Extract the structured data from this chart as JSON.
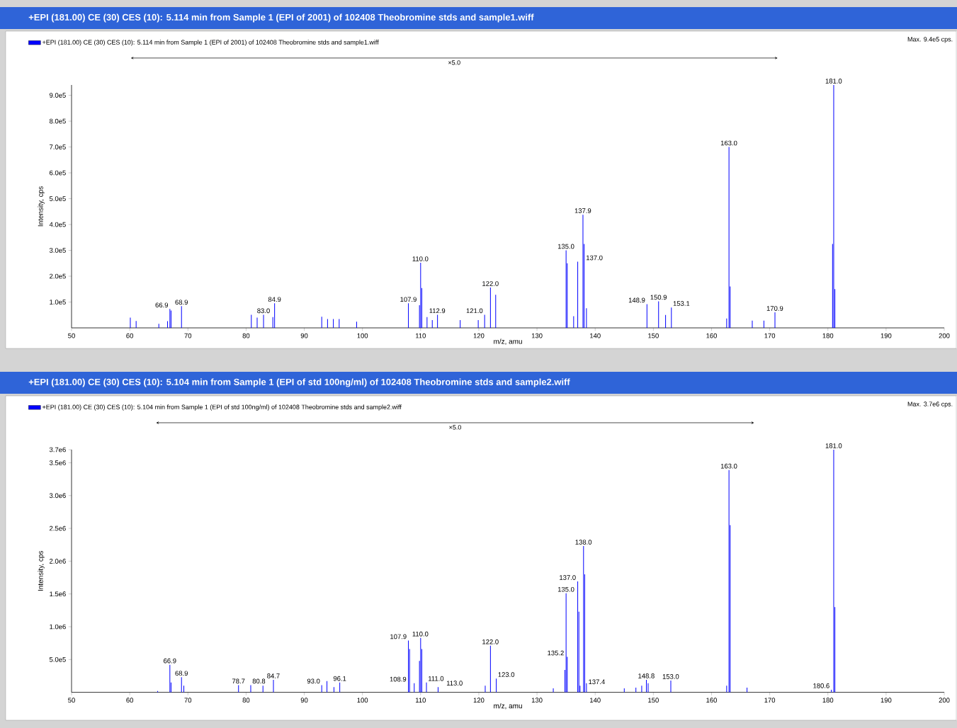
{
  "chart_data": [
    {
      "type": "bar",
      "title": "+EPI (181.00) CE (30) CES (10): 5.114 min from Sample 1 (EPI of 2001) of 102408 Theobromine stds and sample1.wiff",
      "xlabel": "m/z, amu",
      "ylabel": "Intensity, cps",
      "legend": "top left",
      "xlim": [
        50,
        200
      ],
      "xticks": [
        50,
        60,
        70,
        80,
        90,
        100,
        110,
        120,
        130,
        140,
        150,
        160,
        170,
        180,
        190,
        200
      ],
      "ylim": [
        0,
        940000
      ],
      "yticks": [
        {
          "value": 100000,
          "label": "1.0e5"
        },
        {
          "value": 200000,
          "label": "2.0e5"
        },
        {
          "value": 300000,
          "label": "3.0e5"
        },
        {
          "value": 400000,
          "label": "4.0e5"
        },
        {
          "value": 500000,
          "label": "5.0e5"
        },
        {
          "value": 600000,
          "label": "6.0e5"
        },
        {
          "value": 700000,
          "label": "7.0e5"
        },
        {
          "value": 800000,
          "label": "8.0e5"
        },
        {
          "value": 900000,
          "label": "9.0e5"
        }
      ],
      "x": [
        60.1,
        61.1,
        65.0,
        66.5,
        66.9,
        67.1,
        68.9,
        80.9,
        81.9,
        83.0,
        84.6,
        84.9,
        93.0,
        94.0,
        95.0,
        96.0,
        99.0,
        107.9,
        109.8,
        110.0,
        110.2,
        111.1,
        112.0,
        112.9,
        116.8,
        119.9,
        121.0,
        122.0,
        122.9,
        135.0,
        135.2,
        136.3,
        137.0,
        137.9,
        138.1,
        138.5,
        148.9,
        150.9,
        152.1,
        153.1,
        162.6,
        163.0,
        163.2,
        167.0,
        169.0,
        170.9,
        180.8,
        181.0,
        181.2
      ],
      "series": [
        {
          "name": "+EPI (181.00) CE (30) CES (10): 5.114 min from Sample 1 (EPI of 2001) of 102408 Theobromine stds and sample1.wiff",
          "color": "#0000ff",
          "values": [
            40000,
            27000,
            16000,
            26000,
            73000,
            67000,
            84000,
            51000,
            40000,
            51000,
            42000,
            95000,
            43000,
            34000,
            34000,
            34000,
            24000,
            95000,
            88000,
            252000,
            154000,
            42000,
            30000,
            51000,
            30000,
            30000,
            51000,
            156000,
            128000,
            300000,
            250000,
            45000,
            256000,
            438000,
            325000,
            76000,
            92000,
            103000,
            50000,
            79000,
            36000,
            700000,
            160000,
            28000,
            28000,
            60000,
            325000,
            940000,
            150000
          ]
        }
      ],
      "annotations": [
        "Max. 9.4e5 cps.",
        "×5.0",
        {
          "text": "66.9",
          "x": 66.9,
          "y": 73000
        },
        {
          "text": "68.9",
          "x": 68.9,
          "y": 84000
        },
        {
          "text": "83.0",
          "x": 83.0,
          "y": 51000
        },
        {
          "text": "84.9",
          "x": 84.9,
          "y": 95000
        },
        {
          "text": "107.9",
          "x": 107.9,
          "y": 95000
        },
        {
          "text": "110.0",
          "x": 110.0,
          "y": 252000
        },
        {
          "text": "112.9",
          "x": 112.9,
          "y": 51000
        },
        {
          "text": "121.0",
          "x": 121.0,
          "y": 51000
        },
        {
          "text": "122.0",
          "x": 122.0,
          "y": 156000
        },
        {
          "text": "135.0",
          "x": 135.0,
          "y": 300000
        },
        {
          "text": "137.0",
          "x": 137.0,
          "y": 256000
        },
        {
          "text": "137.9",
          "x": 137.9,
          "y": 438000
        },
        {
          "text": "148.9",
          "x": 148.9,
          "y": 92000
        },
        {
          "text": "150.9",
          "x": 150.9,
          "y": 103000
        },
        {
          "text": "153.1",
          "x": 153.1,
          "y": 79000
        },
        {
          "text": "163.0",
          "x": 163.0,
          "y": 700000
        },
        {
          "text": "170.9",
          "x": 170.9,
          "y": 60000
        },
        {
          "text": "181.0",
          "x": 181.0,
          "y": 940000
        }
      ]
    },
    {
      "type": "bar",
      "title": "+EPI (181.00) CE (30) CES (10): 5.104 min from Sample 1 (EPI of std 100ng/ml) of 102408 Theobromine stds and sample2.wiff",
      "xlabel": "m/z, amu",
      "ylabel": "Intensity, cps",
      "legend": "top left",
      "xlim": [
        50,
        200
      ],
      "xticks": [
        50,
        60,
        70,
        80,
        90,
        100,
        110,
        120,
        130,
        140,
        150,
        160,
        170,
        180,
        190,
        200
      ],
      "ylim": [
        0,
        3700000
      ],
      "yticks": [
        {
          "value": 500000,
          "label": "5.0e5"
        },
        {
          "value": 1000000,
          "label": "1.0e6"
        },
        {
          "value": 1500000,
          "label": "1.5e6"
        },
        {
          "value": 2000000,
          "label": "2.0e6"
        },
        {
          "value": 2500000,
          "label": "2.5e6"
        },
        {
          "value": 3000000,
          "label": "3.0e6"
        },
        {
          "value": 3500000,
          "label": "3.5e6"
        },
        {
          "value": 3700000,
          "label": "3.7e6"
        }
      ],
      "x": [
        64.8,
        66.9,
        67.1,
        68.9,
        69.3,
        78.7,
        80.8,
        82.9,
        84.7,
        93.0,
        93.9,
        95.1,
        96.1,
        107.9,
        108.1,
        108.9,
        109.8,
        110.0,
        110.2,
        111.0,
        113.0,
        121.1,
        122.0,
        123.0,
        132.8,
        134.8,
        135.0,
        135.2,
        137.0,
        137.2,
        137.4,
        138.0,
        138.2,
        138.5,
        145.0,
        147.0,
        148.0,
        148.8,
        149.1,
        153.0,
        162.6,
        163.0,
        163.2,
        166.1,
        180.6,
        181.0,
        181.2
      ],
      "series": [
        {
          "name": "+EPI (181.00) CE (30) CES (10): 5.104 min from Sample 1 (EPI of std 100ng/ml) of 102408 Theobromine stds and sample2.wiff",
          "color": "#0000ff",
          "values": [
            20000,
            420000,
            150000,
            230000,
            100000,
            110000,
            110000,
            100000,
            190000,
            110000,
            170000,
            80000,
            150000,
            790000,
            660000,
            140000,
            480000,
            830000,
            660000,
            150000,
            80000,
            100000,
            710000,
            210000,
            60000,
            340000,
            1510000,
            540000,
            1690000,
            1230000,
            100000,
            2230000,
            1800000,
            140000,
            60000,
            70000,
            100000,
            190000,
            140000,
            180000,
            100000,
            3390000,
            2550000,
            70000,
            40000,
            3700000,
            1300000
          ]
        }
      ],
      "annotations": [
        "Max. 3.7e6 cps.",
        "×5.0",
        {
          "text": "66.9",
          "x": 66.9,
          "y": 420000
        },
        {
          "text": "68.9",
          "x": 68.9,
          "y": 230000
        },
        {
          "text": "78.7",
          "x": 78.7,
          "y": 110000
        },
        {
          "text": "80.8",
          "x": 80.8,
          "y": 110000
        },
        {
          "text": "84.7",
          "x": 84.7,
          "y": 190000
        },
        {
          "text": "93.0",
          "x": 93.0,
          "y": 110000
        },
        {
          "text": "96.1",
          "x": 96.1,
          "y": 150000
        },
        {
          "text": "107.9",
          "x": 107.9,
          "y": 790000
        },
        {
          "text": "108.9",
          "x": 108.9,
          "y": 140000
        },
        {
          "text": "110.0",
          "x": 110.0,
          "y": 830000
        },
        {
          "text": "111.0",
          "x": 111.0,
          "y": 150000
        },
        {
          "text": "113.0",
          "x": 113.0,
          "y": 80000
        },
        {
          "text": "122.0",
          "x": 122.0,
          "y": 710000
        },
        {
          "text": "123.0",
          "x": 123.0,
          "y": 210000
        },
        {
          "text": "135.0",
          "x": 135.0,
          "y": 1510000
        },
        {
          "text": "135.2",
          "x": 135.2,
          "y": 540000
        },
        {
          "text": "137.0",
          "x": 137.0,
          "y": 1690000
        },
        {
          "text": "137.4",
          "x": 137.4,
          "y": 100000
        },
        {
          "text": "138.0",
          "x": 138.0,
          "y": 2230000
        },
        {
          "text": "148.8",
          "x": 148.8,
          "y": 190000
        },
        {
          "text": "153.0",
          "x": 153.0,
          "y": 180000
        },
        {
          "text": "163.0",
          "x": 163.0,
          "y": 3390000
        },
        {
          "text": "180.6",
          "x": 180.6,
          "y": 40000
        },
        {
          "text": "181.0",
          "x": 181.0,
          "y": 3700000
        }
      ]
    }
  ]
}
